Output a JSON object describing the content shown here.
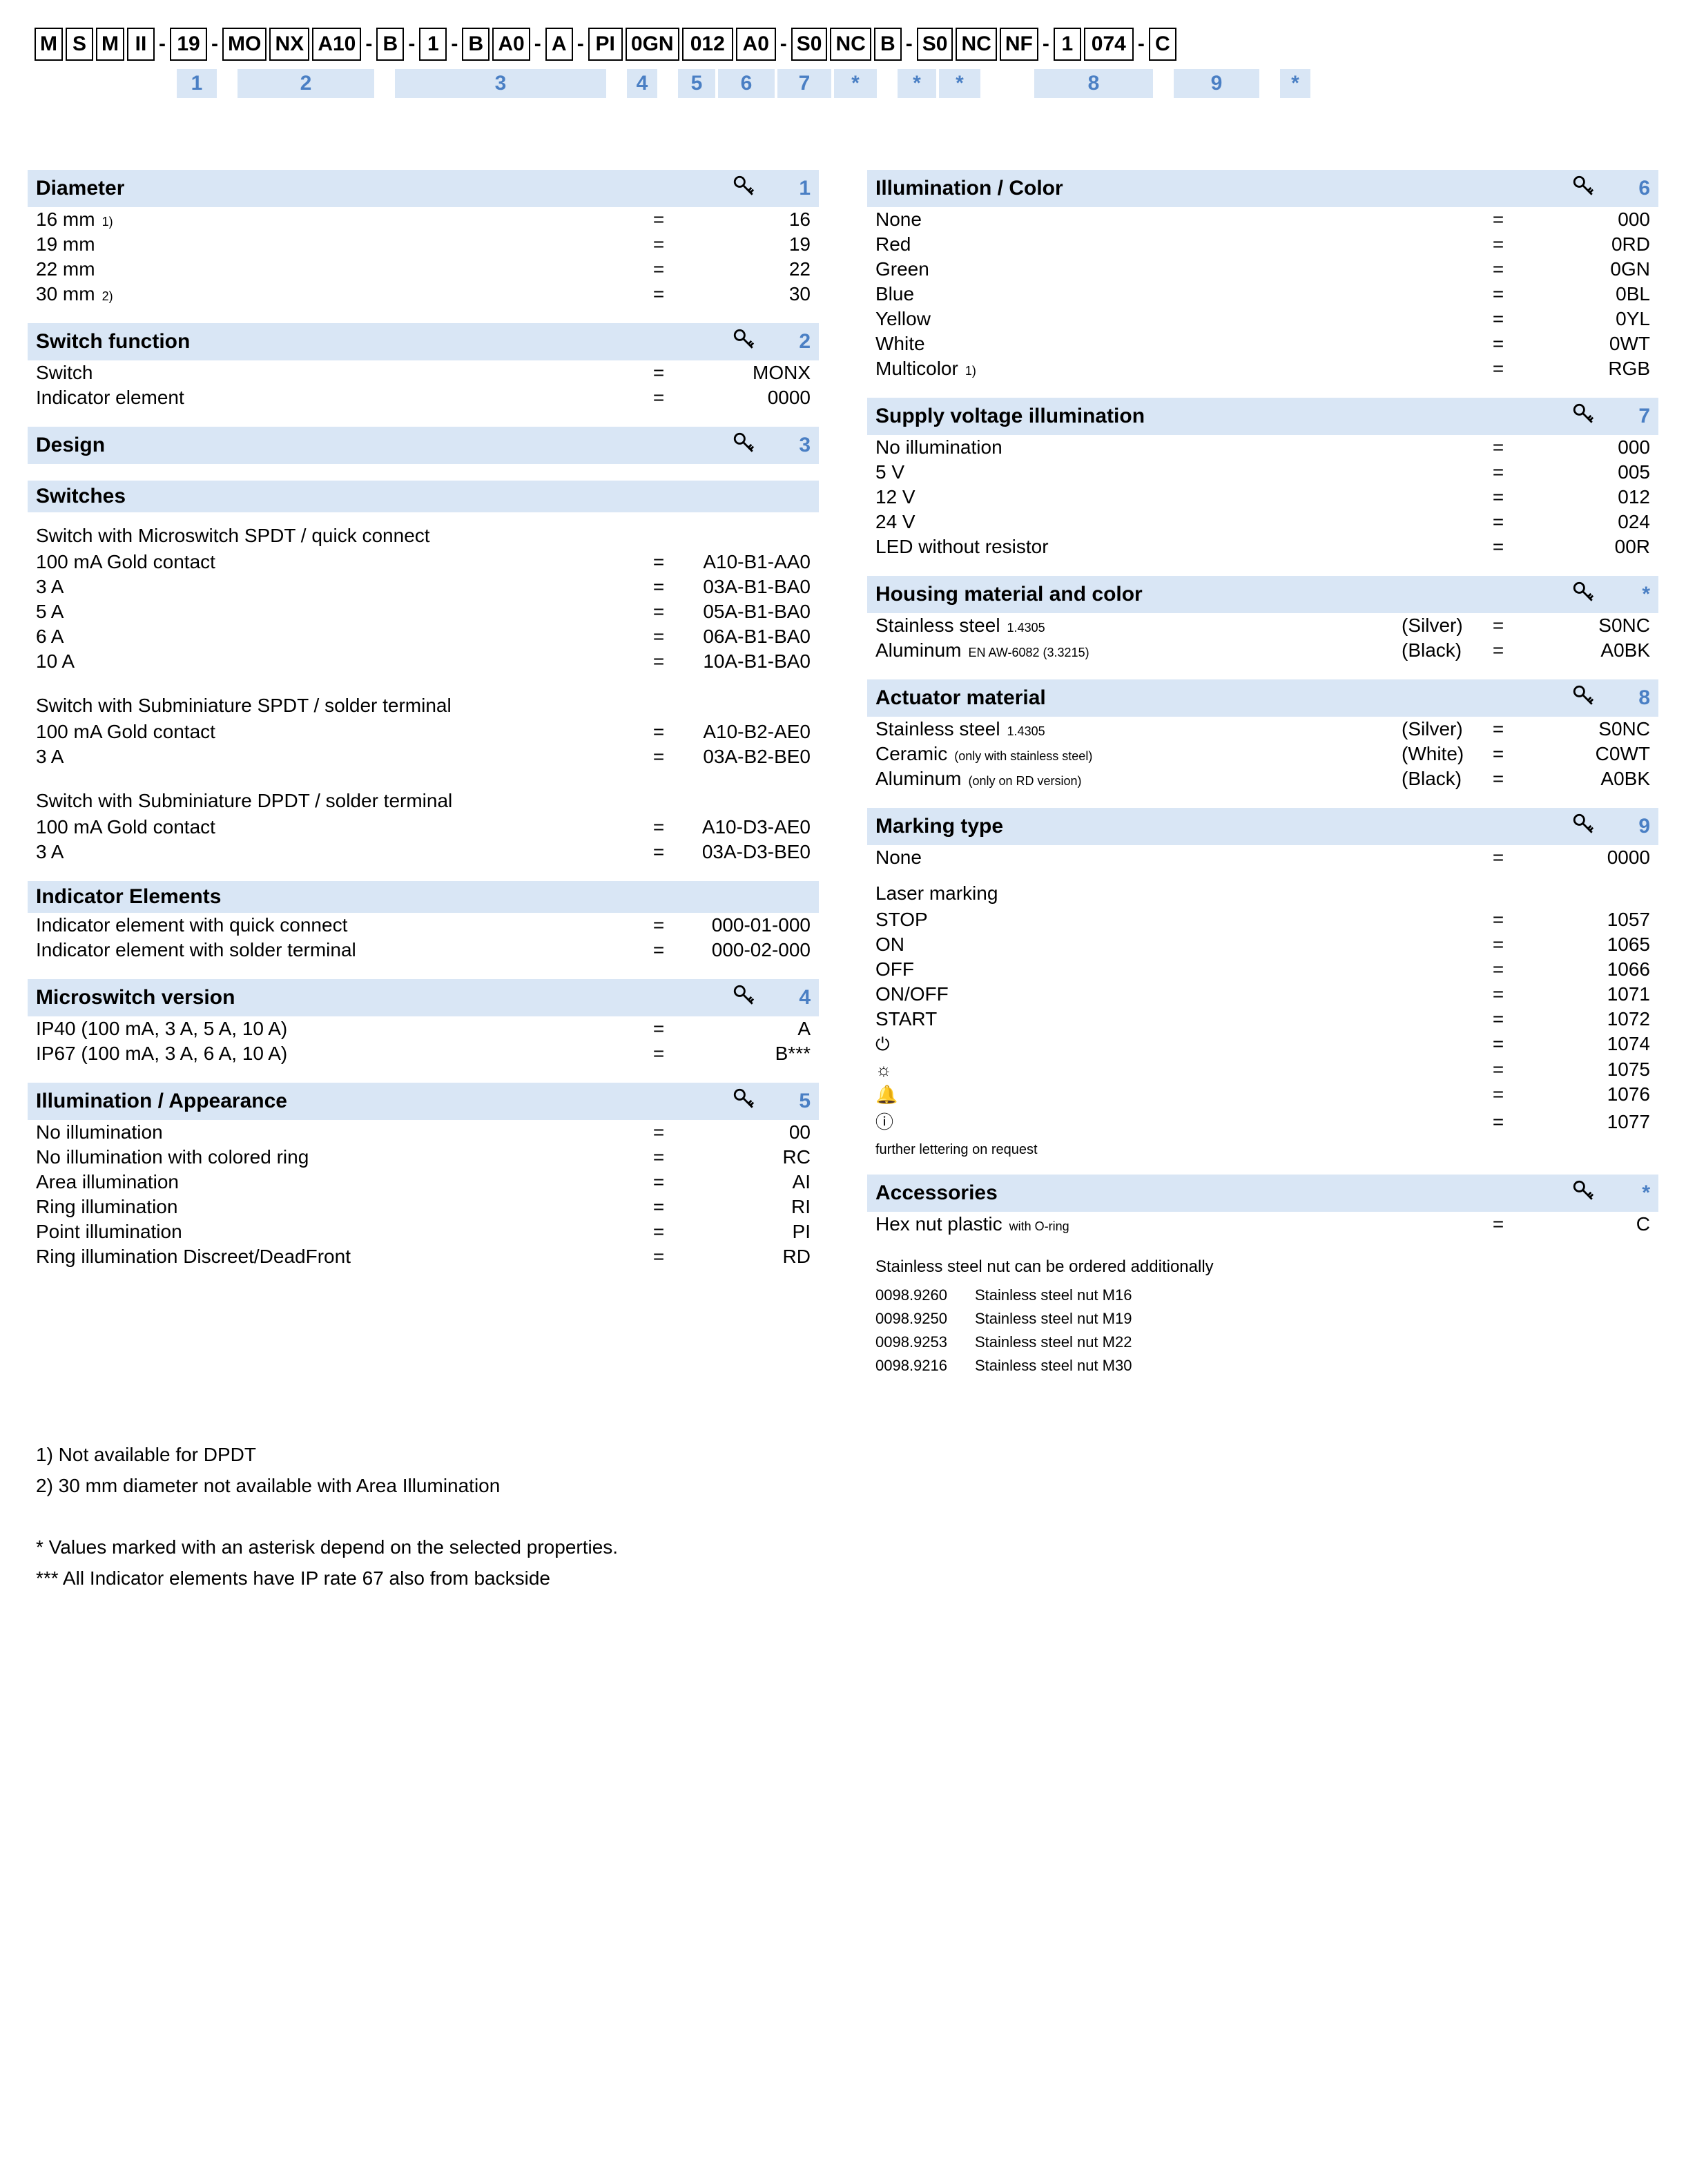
{
  "colors": {
    "header_bg": "#d9e6f5",
    "index_color": "#4a7fc4",
    "text": "#000000",
    "bg": "#ffffff"
  },
  "code_strip": {
    "groups": [
      {
        "cells": [
          "M",
          "S",
          "M",
          "II"
        ],
        "w": [
          40,
          40,
          40,
          40
        ]
      },
      {
        "cells": [
          "19"
        ],
        "w": [
          54
        ]
      },
      {
        "cells": [
          "MO",
          "NX",
          "A10"
        ],
        "w": [
          58,
          58,
          70
        ]
      },
      {
        "cells": [
          "B"
        ],
        "w": [
          40
        ]
      },
      {
        "cells": [
          "1"
        ],
        "w": [
          40
        ]
      },
      {
        "cells": [
          "B",
          "A0"
        ],
        "w": [
          40,
          54
        ]
      },
      {
        "cells": [
          "A"
        ],
        "w": [
          40
        ]
      },
      {
        "cells": [
          "PI",
          "0GN",
          "012",
          "A0"
        ],
        "w": [
          50,
          78,
          74,
          58
        ]
      },
      {
        "cells": [
          "S0",
          "NC",
          "B"
        ],
        "w": [
          52,
          56,
          40
        ]
      },
      {
        "cells": [
          "S0",
          "NC",
          "NF"
        ],
        "w": [
          52,
          56,
          52
        ]
      },
      {
        "cells": [
          "1",
          "074"
        ],
        "w": [
          40,
          72
        ]
      },
      {
        "cells": [
          "C"
        ],
        "w": [
          40
        ]
      }
    ],
    "sep": "-"
  },
  "index_labels": [
    "1",
    "2",
    "3",
    "4",
    "5",
    "6",
    "7",
    "*",
    "*",
    "*",
    "8",
    "9",
    "*"
  ],
  "left": {
    "diameter": {
      "title": "Diameter",
      "num": "1",
      "rows": [
        {
          "label": "16 mm",
          "note": "1)",
          "code": "16"
        },
        {
          "label": "19 mm",
          "code": "19"
        },
        {
          "label": "22 mm",
          "code": "22"
        },
        {
          "label": "30 mm",
          "note": "2)",
          "code": "30"
        }
      ]
    },
    "switch_function": {
      "title": "Switch function",
      "num": "2",
      "rows": [
        {
          "label": "Switch",
          "code": "MONX"
        },
        {
          "label": "Indicator element",
          "code": "0000"
        }
      ]
    },
    "design": {
      "title": "Design",
      "num": "3"
    },
    "switches_sub": "Switches",
    "sw_group1_label": "Switch with Microswitch SPDT / quick connect",
    "sw_group1": [
      {
        "label": "100 mA Gold contact",
        "code": "A10-B1-AA0"
      },
      {
        "label": "3 A",
        "code": "03A-B1-BA0"
      },
      {
        "label": "5 A",
        "code": "05A-B1-BA0"
      },
      {
        "label": "6 A",
        "code": "06A-B1-BA0"
      },
      {
        "label": "10 A",
        "code": "10A-B1-BA0"
      }
    ],
    "sw_group2_label": "Switch with Subminiature SPDT / solder terminal",
    "sw_group2": [
      {
        "label": "100 mA Gold contact",
        "code": "A10-B2-AE0"
      },
      {
        "label": "3 A",
        "code": "03A-B2-BE0"
      }
    ],
    "sw_group3_label": "Switch with Subminiature DPDT / solder terminal",
    "sw_group3": [
      {
        "label": "100 mA Gold contact",
        "code": "A10-D3-AE0"
      },
      {
        "label": "3 A",
        "code": "03A-D3-BE0"
      }
    ],
    "indicator_sub": "Indicator Elements",
    "indicator_rows": [
      {
        "label": "Indicator element with quick connect",
        "code": "000-01-000"
      },
      {
        "label": "Indicator element with solder terminal",
        "code": "000-02-000"
      }
    ],
    "microswitch": {
      "title": "Microswitch version",
      "num": "4",
      "rows": [
        {
          "label": "IP40 (100 mA, 3 A, 5 A, 10 A)",
          "code": "A"
        },
        {
          "label": "IP67 (100 mA, 3 A, 6 A, 10 A)",
          "code": "B***"
        }
      ]
    },
    "illum_app": {
      "title": "Illumination / Appearance",
      "num": "5",
      "rows": [
        {
          "label": "No illumination",
          "code": "00"
        },
        {
          "label": "No illumination with colored ring",
          "code": "RC"
        },
        {
          "label": "Area illumination",
          "code": "AI"
        },
        {
          "label": "Ring illumination",
          "code": "RI"
        },
        {
          "label": "Point illumination",
          "code": "PI"
        },
        {
          "label": "Ring illumination Discreet/DeadFront",
          "code": "RD"
        }
      ]
    }
  },
  "right": {
    "illum_color": {
      "title": "Illumination / Color",
      "num": "6",
      "rows": [
        {
          "label": "None",
          "code": "000"
        },
        {
          "label": "Red",
          "code": "0RD"
        },
        {
          "label": "Green",
          "code": "0GN"
        },
        {
          "label": "Blue",
          "code": "0BL"
        },
        {
          "label": "Yellow",
          "code": "0YL"
        },
        {
          "label": "White",
          "code": "0WT"
        },
        {
          "label": "Multicolor",
          "note": "1)",
          "code": "RGB"
        }
      ]
    },
    "supply_voltage": {
      "title": "Supply voltage illumination",
      "num": "7",
      "rows": [
        {
          "label": "No illumination",
          "code": "000"
        },
        {
          "label": "5 V",
          "code": "005"
        },
        {
          "label": "12 V",
          "code": "012"
        },
        {
          "label": "24 V",
          "code": "024"
        },
        {
          "label": "LED without resistor",
          "code": "00R"
        }
      ]
    },
    "housing": {
      "title": "Housing material and color",
      "num": "*",
      "rows": [
        {
          "label": "Stainless steel",
          "sub": "1.4305",
          "paren": "(Silver)",
          "code": "S0NC"
        },
        {
          "label": "Aluminum",
          "sub": "EN AW-6082 (3.3215)",
          "paren": "(Black)",
          "code": "A0BK"
        }
      ]
    },
    "actuator": {
      "title": "Actuator material",
      "num": "8",
      "rows": [
        {
          "label": "Stainless steel",
          "sub": "1.4305",
          "paren": "(Silver)",
          "code": "S0NC"
        },
        {
          "label": "Ceramic",
          "sub": "(only with stainless steel)",
          "paren": "(White)",
          "code": "C0WT"
        },
        {
          "label": "Aluminum",
          "sub": "(only on RD version)",
          "paren": "(Black)",
          "code": "A0BK"
        }
      ]
    },
    "marking": {
      "title": "Marking type",
      "num": "9",
      "none": {
        "label": "None",
        "code": "0000"
      },
      "group_label": "Laser marking",
      "rows": [
        {
          "label": "STOP",
          "code": "1057"
        },
        {
          "label": "ON",
          "code": "1065"
        },
        {
          "label": "OFF",
          "code": "1066"
        },
        {
          "label": "ON/OFF",
          "code": "1071"
        },
        {
          "label": "START",
          "code": "1072"
        },
        {
          "label": "⏻",
          "icon": true,
          "code": "1074"
        },
        {
          "label": "☼",
          "icon": true,
          "code": "1075"
        },
        {
          "label": "🔔",
          "icon": true,
          "code": "1076"
        },
        {
          "label": "ⓘ",
          "icon": true,
          "code": "1077"
        }
      ],
      "footnote": "further lettering on request"
    },
    "accessories": {
      "title": "Accessories",
      "num": "*",
      "rows": [
        {
          "label": "Hex nut plastic",
          "sub": "with O-ring",
          "code": "C"
        }
      ],
      "extra_title": "Stainless steel nut can be ordered additionally",
      "extras": [
        {
          "pn": "0098.9260",
          "desc": "Stainless steel nut M16"
        },
        {
          "pn": "0098.9250",
          "desc": "Stainless steel nut M19"
        },
        {
          "pn": "0098.9253",
          "desc": "Stainless steel nut M22"
        },
        {
          "pn": "0098.9216",
          "desc": "Stainless steel nut M30"
        }
      ]
    }
  },
  "footnotes": [
    "1)  Not available for DPDT",
    "2) 30 mm diameter not available with Area Illumination",
    "",
    "* Values marked with an asterisk depend on the selected properties.",
    "*** All Indicator elements have IP rate 67 also from backside"
  ]
}
